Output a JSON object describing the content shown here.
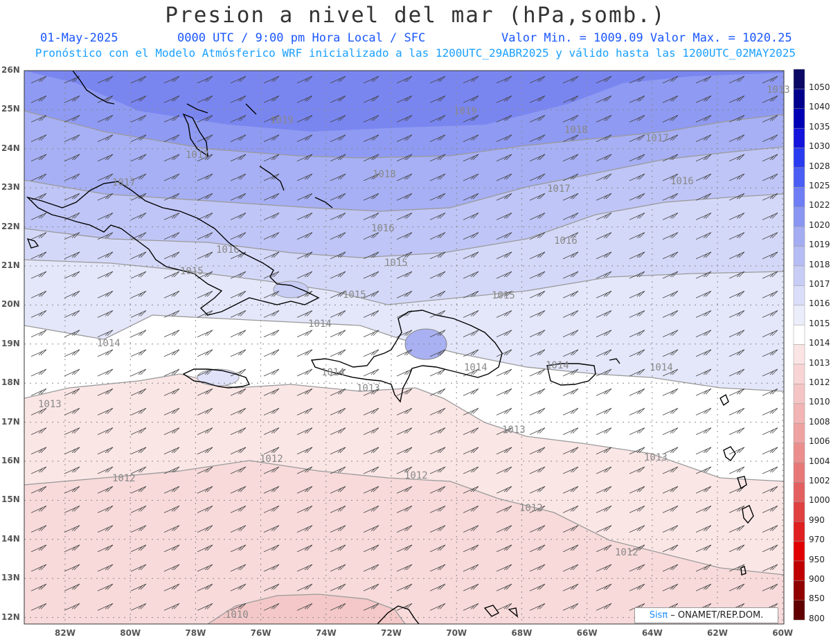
{
  "title": "Presion a nivel del mar (hPa,somb.)",
  "subtitle": {
    "date": "01-May-2025",
    "time": "0000 UTC / 9:00 pm Hora Local / SFC",
    "min_max": "Valor Min. = 1009.09  Valor Max. = 1020.25"
  },
  "description": "Pronóstico con el Modelo Atmósferico WRF inicializado a las 1200UTC_29ABR2025 y válido hasta las  1200UTC_02MAY2025",
  "latitude_labels": [
    "26N",
    "25N",
    "24N",
    "23N",
    "22N",
    "21N",
    "20N",
    "19N",
    "18N",
    "17N",
    "16N",
    "15N",
    "14N",
    "13N",
    "12N"
  ],
  "longitude_labels": [
    "82W",
    "80W",
    "78W",
    "76W",
    "74W",
    "72W",
    "70W",
    "68W",
    "66W",
    "64W",
    "62W",
    "60W"
  ],
  "contour_labels": [
    "1019",
    "1019",
    "1018",
    "1017",
    "1017",
    "1018",
    "1017",
    "1017",
    "1016",
    "1016",
    "1015",
    "1016",
    "1016",
    "1015",
    "1015",
    "1015",
    "1014",
    "1014",
    "1014",
    "1014",
    "1014",
    "1013",
    "1013",
    "1013",
    "1013",
    "1012",
    "1012",
    "1012",
    "1012",
    "1012",
    "1010",
    "1013",
    "1014"
  ],
  "colorbar": {
    "levels": [
      "1050",
      "1040",
      "1035",
      "1030",
      "1028",
      "1025",
      "1022",
      "1020",
      "1019",
      "1018",
      "1017",
      "1016",
      "1015",
      "1014",
      "1013",
      "1012",
      "1010",
      "1008",
      "1006",
      "1004",
      "1002",
      "1000",
      "990",
      "970",
      "950",
      "900",
      "850",
      "800"
    ],
    "colors": [
      "#0a0a64",
      "#00008c",
      "#0000b4",
      "#1414dc",
      "#2a3cf0",
      "#4a5ef5",
      "#6f7ef5",
      "#8a96f2",
      "#a4adf2",
      "#b6bdf4",
      "#c8cdf6",
      "#dadef9",
      "#ebedfb",
      "#ffffff",
      "#fbe4e4",
      "#f8d4d4",
      "#f5c5c5",
      "#f2b4b4",
      "#efa2a2",
      "#ec8e8e",
      "#e87878",
      "#e46060",
      "#e04040",
      "#e02020",
      "#e00000",
      "#c00000",
      "#900000",
      "#600000"
    ]
  },
  "credit": {
    "brand": "Sis",
    "pi": "π",
    "text": " – ONAMET/REP.DOM."
  }
}
